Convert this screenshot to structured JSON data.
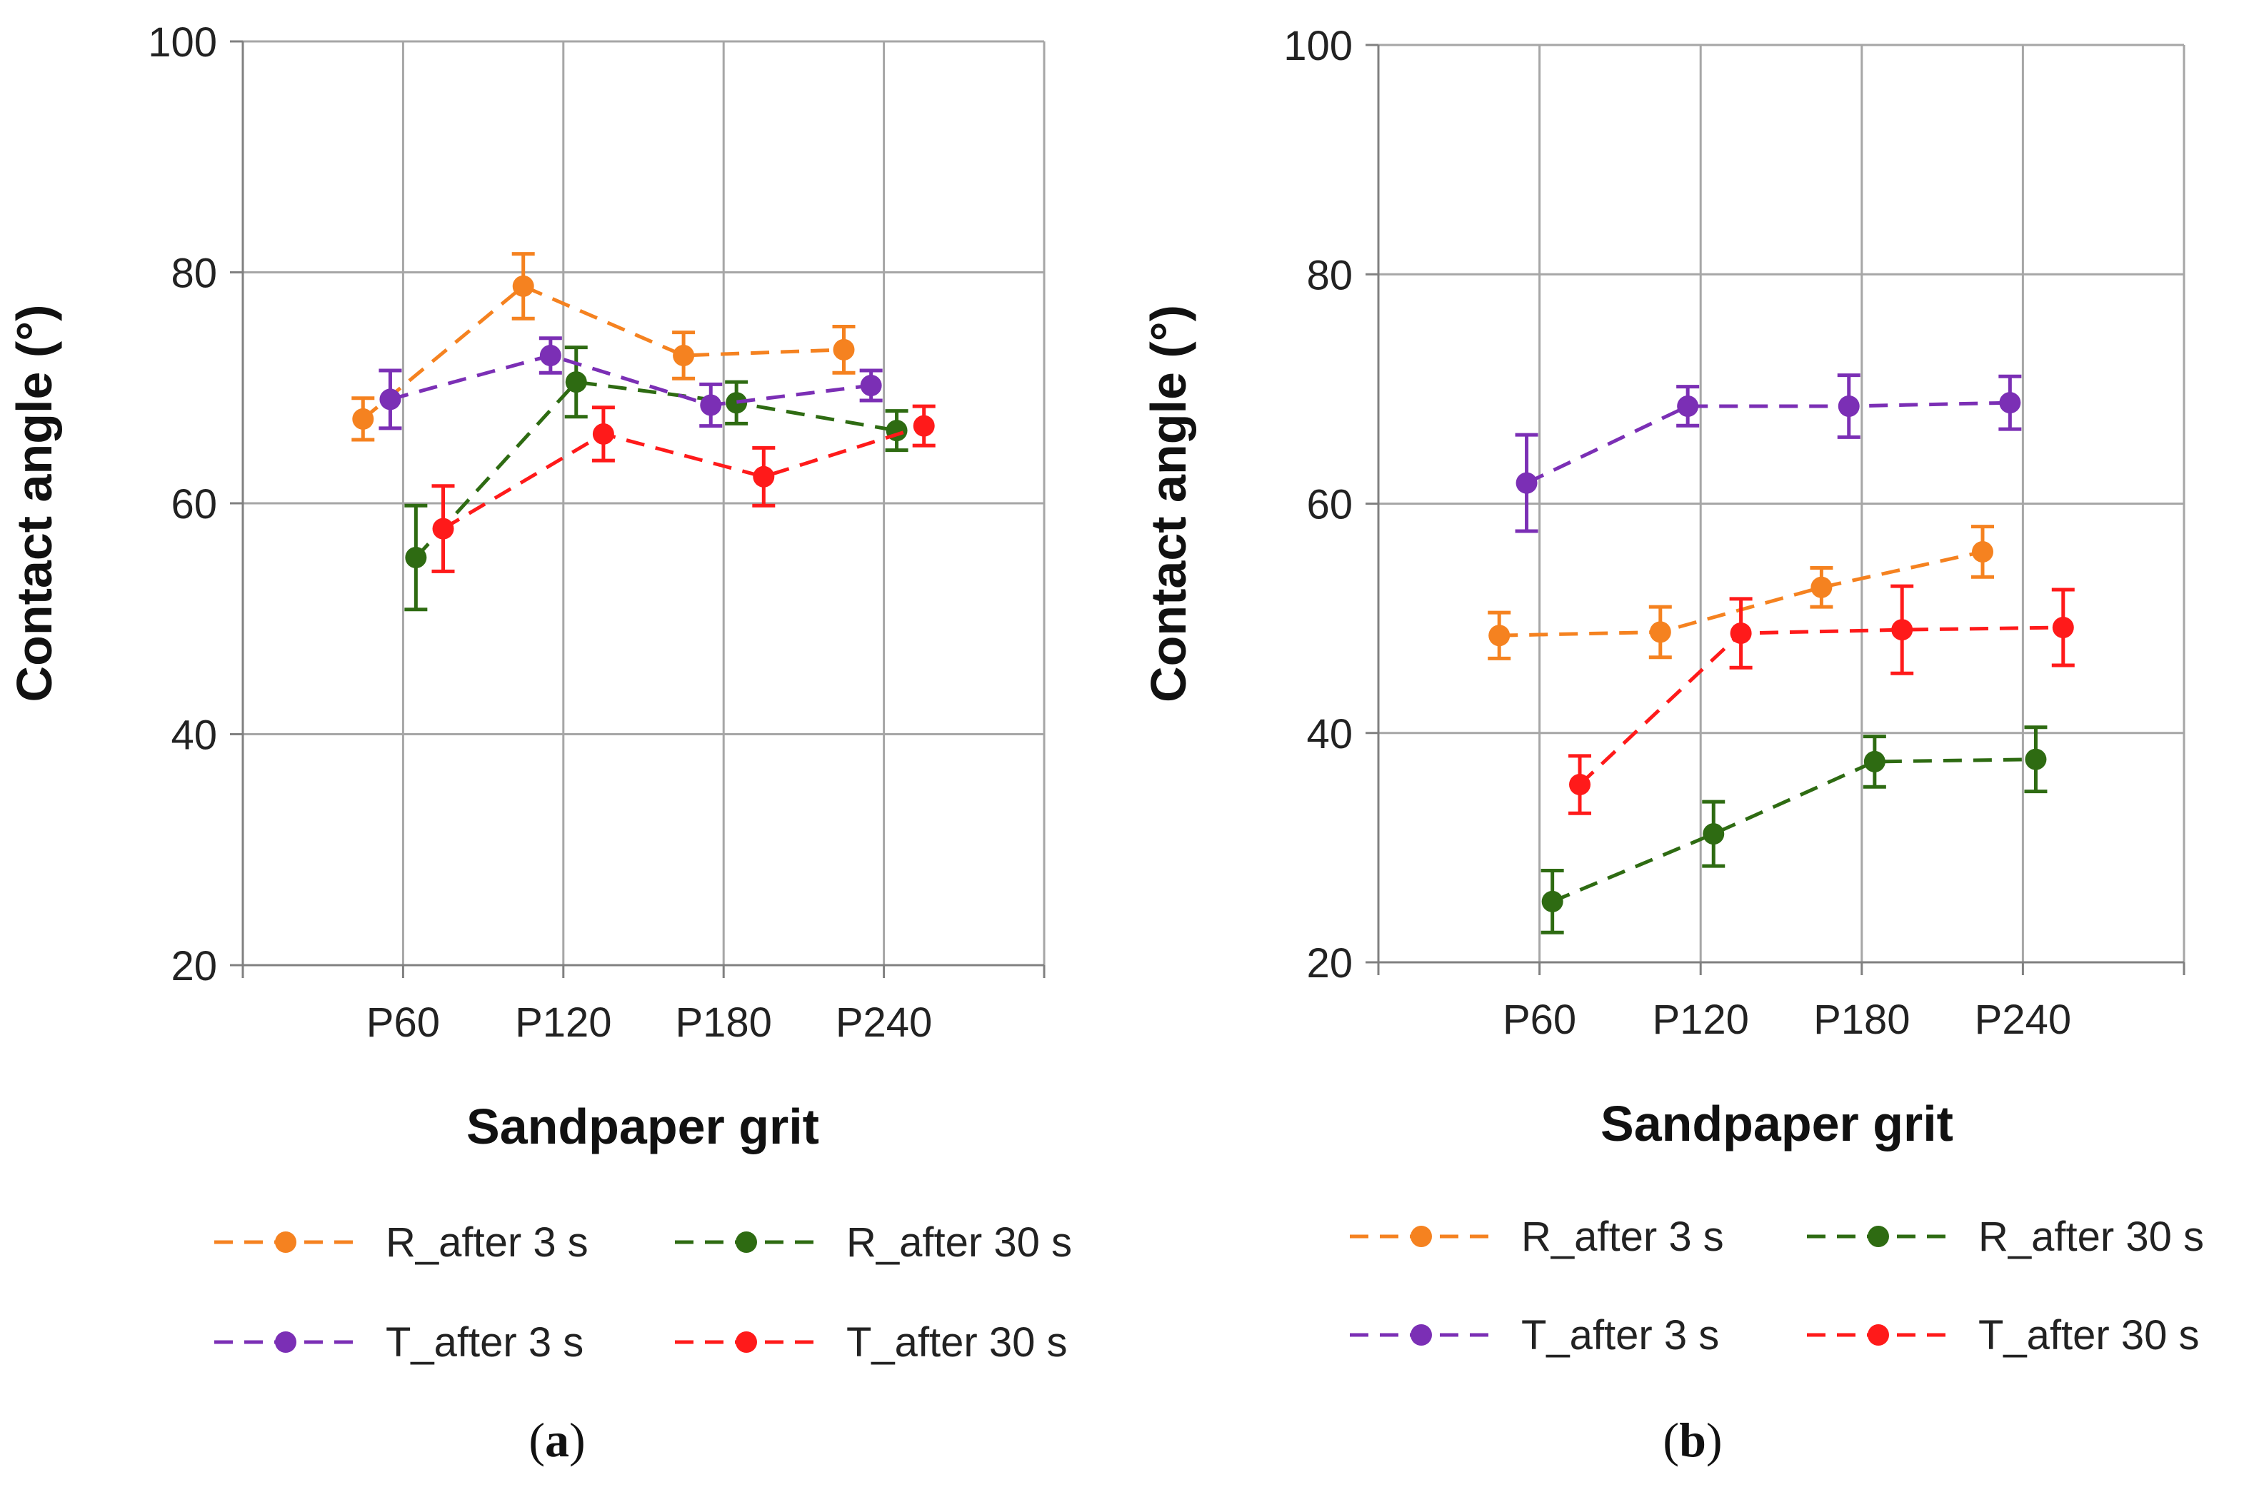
{
  "chart_data": [
    {
      "type": "line",
      "panel_label": {
        "open": "(",
        "letter": "a",
        "close": ")"
      },
      "categories": [
        "P60",
        "P120",
        "P180",
        "P240"
      ],
      "xlabel": "Sandpaper grit",
      "ylabel": "Contact angle (°)",
      "ylim": [
        20,
        100
      ],
      "yticks": [
        20,
        40,
        60,
        80,
        100
      ],
      "grid": true,
      "legend_position": "bottom",
      "series": [
        {
          "name": "R_after 3 s",
          "color": "#f58220",
          "offset": -0.25,
          "values": [
            67.3,
            78.8,
            72.8,
            73.3
          ],
          "errors": [
            1.8,
            2.8,
            2.0,
            2.0
          ]
        },
        {
          "name": "R_after 30 s",
          "color": "#2e6b12",
          "offset": 0.08,
          "values": [
            55.3,
            70.5,
            68.7,
            66.3
          ],
          "errors": [
            4.5,
            3.0,
            1.8,
            1.7
          ]
        },
        {
          "name": "T_after 3 s",
          "color": "#7b2fb5",
          "offset": -0.08,
          "values": [
            69.0,
            72.8,
            68.5,
            70.2
          ],
          "errors": [
            2.5,
            1.5,
            1.8,
            1.3
          ]
        },
        {
          "name": "T_after 30 s",
          "color": "#ff1a1a",
          "offset": 0.25,
          "values": [
            57.8,
            66.0,
            62.3,
            66.7
          ],
          "errors": [
            3.7,
            2.3,
            2.5,
            1.7
          ]
        }
      ]
    },
    {
      "type": "line",
      "panel_label": {
        "open": "(",
        "letter": "b",
        "close": ")"
      },
      "categories": [
        "P60",
        "P120",
        "P180",
        "P240"
      ],
      "xlabel": "Sandpaper grit",
      "ylabel": "Contact angle (°)",
      "ylim": [
        20,
        100
      ],
      "yticks": [
        20,
        40,
        60,
        80,
        100
      ],
      "grid": true,
      "legend_position": "bottom",
      "series": [
        {
          "name": "R_after 3 s",
          "color": "#f58220",
          "offset": -0.25,
          "values": [
            48.5,
            48.8,
            52.7,
            55.8
          ],
          "errors": [
            2.0,
            2.2,
            1.7,
            2.2
          ]
        },
        {
          "name": "R_after 30 s",
          "color": "#2e6b12",
          "offset": 0.08,
          "values": [
            25.3,
            31.2,
            37.5,
            37.7
          ],
          "errors": [
            2.7,
            2.8,
            2.2,
            2.8
          ]
        },
        {
          "name": "T_after 3 s",
          "color": "#7b2fb5",
          "offset": -0.08,
          "values": [
            61.8,
            68.5,
            68.5,
            68.8
          ],
          "errors": [
            4.2,
            1.7,
            2.7,
            2.3
          ]
        },
        {
          "name": "T_after 30 s",
          "color": "#ff1a1a",
          "offset": 0.25,
          "values": [
            35.5,
            48.7,
            49.0,
            49.2
          ],
          "errors": [
            2.5,
            3.0,
            3.8,
            3.3
          ]
        }
      ]
    }
  ]
}
